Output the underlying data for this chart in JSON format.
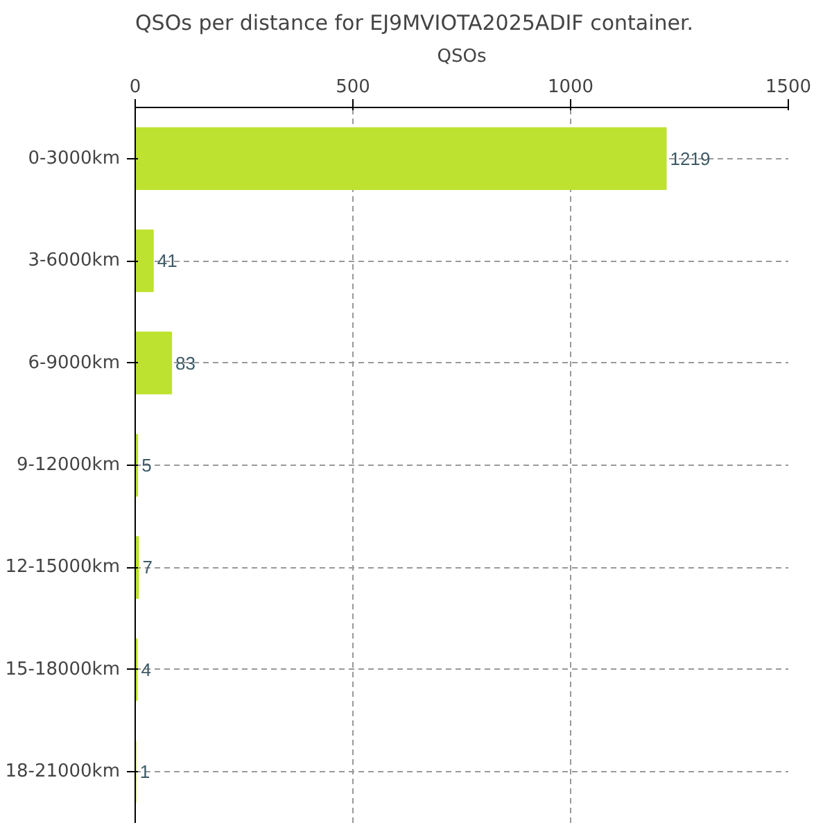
{
  "chart_data": {
    "type": "bar",
    "orientation": "horizontal",
    "title": "QSOs per distance for EJ9MVIOTA2025ADIF container.",
    "xlabel": "QSOs",
    "categories": [
      "0-3000km",
      "3-6000km",
      "6-9000km",
      "9-12000km",
      "12-15000km",
      "15-18000km",
      "18-21000km"
    ],
    "values": [
      1219,
      41,
      83,
      5,
      7,
      4,
      1
    ],
    "color": "#bde22f",
    "xlim": [
      0,
      1500
    ],
    "xticks": [
      0,
      500,
      1000,
      1500
    ],
    "grid": true,
    "data_labels": true
  }
}
